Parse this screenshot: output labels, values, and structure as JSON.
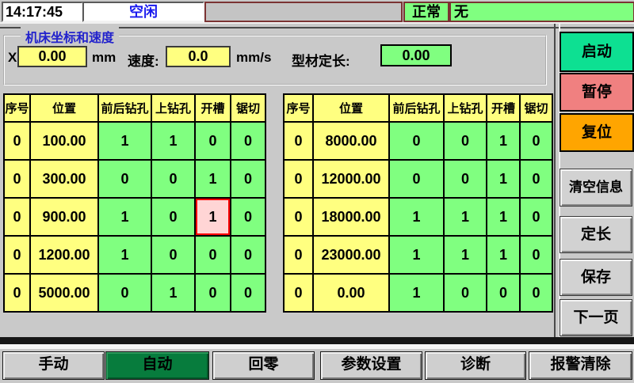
{
  "colors": {
    "page_bg": "#c9c9c9",
    "status_green": "#80ff80",
    "cell_green": "#80ff80",
    "cell_yellow": "#ffff80",
    "selected_pink": "#ffd5d5",
    "selected_border": "#ff0000",
    "start_green": "#0de092",
    "pause_red": "#f08080",
    "reset_orange": "#ffa500",
    "active_tab_green": "#077c3d",
    "title_blue": "#2222cc"
  },
  "top_bar": {
    "time": "14:17:45",
    "machine_state": "空闲",
    "alarm_state": "正常",
    "alarm_message": "无"
  },
  "coords_panel": {
    "title": "机床坐标和速度",
    "x_label": "X",
    "x_value": "0.00",
    "x_unit": "mm",
    "speed_label": "速度:",
    "speed_value": "0.0",
    "speed_unit": "mm/s",
    "length_label": "型材定长:",
    "length_value": "0.00"
  },
  "tables": {
    "headers": [
      "序号",
      "位置",
      "前后钻孔",
      "上钻孔",
      "开槽",
      "锯切"
    ],
    "left_rows": [
      [
        "0",
        "100.00",
        "1",
        "1",
        "0",
        "0"
      ],
      [
        "0",
        "300.00",
        "0",
        "0",
        "1",
        "0"
      ],
      [
        "0",
        "900.00",
        "1",
        "0",
        "1",
        "0"
      ],
      [
        "0",
        "1200.00",
        "1",
        "0",
        "0",
        "0"
      ],
      [
        "0",
        "5000.00",
        "0",
        "1",
        "0",
        "0"
      ]
    ],
    "right_rows": [
      [
        "0",
        "8000.00",
        "0",
        "0",
        "1",
        "0"
      ],
      [
        "0",
        "12000.00",
        "0",
        "0",
        "1",
        "0"
      ],
      [
        "0",
        "18000.00",
        "1",
        "1",
        "1",
        "0"
      ],
      [
        "0",
        "23000.00",
        "1",
        "1",
        "1",
        "0"
      ],
      [
        "0",
        "0.00",
        "1",
        "0",
        "0",
        "0"
      ]
    ],
    "selected": {
      "table": "left",
      "row": 2,
      "col": 4
    }
  },
  "sidebar": {
    "buttons": [
      {
        "id": "start",
        "label": "启动",
        "style": "green"
      },
      {
        "id": "pause",
        "label": "暂停",
        "style": "red"
      },
      {
        "id": "reset",
        "label": "复位",
        "style": "orange"
      },
      {
        "id": "clear-info",
        "label": "清空信息",
        "style": "gray"
      },
      {
        "id": "fixed-length",
        "label": "定长",
        "style": "gray"
      },
      {
        "id": "save",
        "label": "保存",
        "style": "gray"
      },
      {
        "id": "next-page",
        "label": "下一页",
        "style": "gray"
      }
    ]
  },
  "bottom_tabs": [
    {
      "id": "manual",
      "label": "手动",
      "active": false
    },
    {
      "id": "auto",
      "label": "自动",
      "active": true
    },
    {
      "id": "home",
      "label": "回零",
      "active": false
    },
    {
      "id": "params",
      "label": "参数设置",
      "active": false
    },
    {
      "id": "diagnosis",
      "label": "诊断",
      "active": false
    },
    {
      "id": "alarm-clear",
      "label": "报警清除",
      "active": false
    }
  ]
}
